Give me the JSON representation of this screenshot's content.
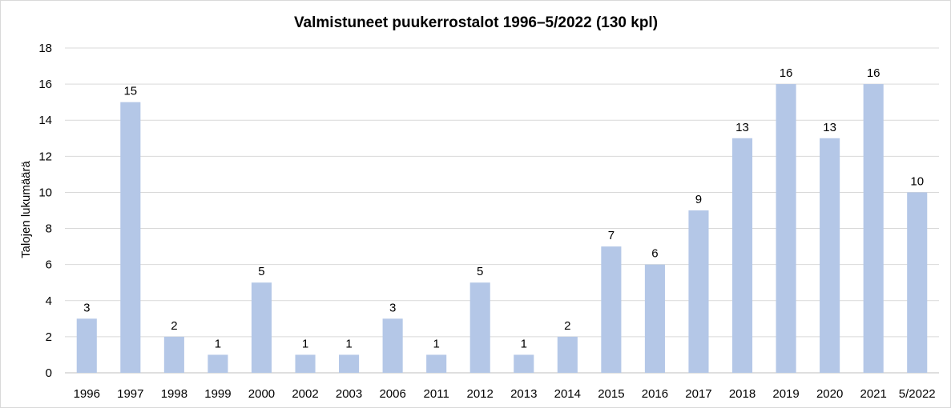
{
  "chart_data": {
    "type": "bar",
    "title": "Valmistuneet puukerrostalot 1996–5/2022 (130 kpl)",
    "xlabel": "",
    "ylabel": "Talojen lukumäärä",
    "ylim": [
      0,
      18
    ],
    "yticks": [
      0,
      2,
      4,
      6,
      8,
      10,
      12,
      14,
      16,
      18
    ],
    "grid": true,
    "bar_color": "#b4c7e7",
    "categories": [
      "1996",
      "1997",
      "1998",
      "1999",
      "2000",
      "2002",
      "2003",
      "2006",
      "2011",
      "2012",
      "2013",
      "2014",
      "2015",
      "2016",
      "2017",
      "2018",
      "2019",
      "2020",
      "2021",
      "5/2022"
    ],
    "values": [
      3,
      15,
      2,
      1,
      5,
      1,
      1,
      3,
      1,
      5,
      1,
      2,
      7,
      6,
      9,
      13,
      16,
      13,
      16,
      10
    ],
    "data_labels": true
  }
}
